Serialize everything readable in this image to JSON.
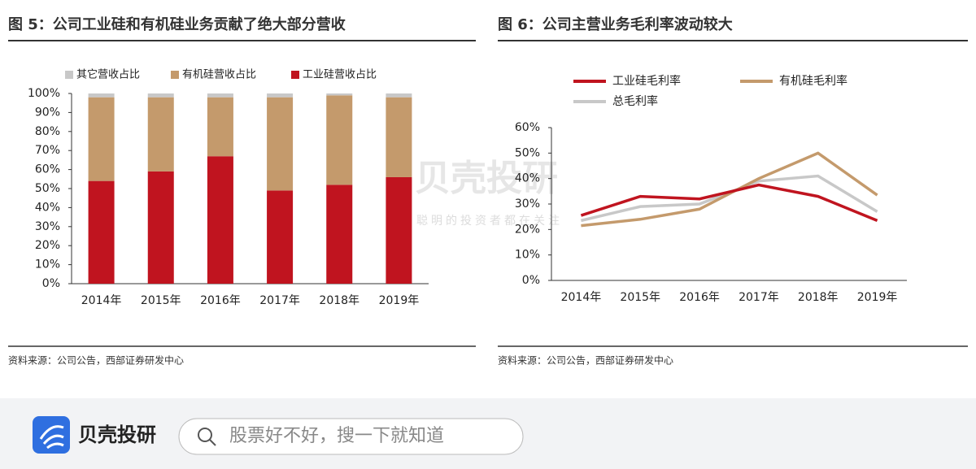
{
  "chart_data": [
    {
      "type": "stacked_bar",
      "title": "图 5：公司工业硅和有机硅业务贡献了绝大部分营收",
      "categories": [
        "2014年",
        "2015年",
        "2016年",
        "2017年",
        "2018年",
        "2019年"
      ],
      "series": [
        {
          "name": "其它营收占比",
          "color": "#c8c8c8",
          "values": [
            2,
            2,
            2,
            2,
            1,
            2
          ]
        },
        {
          "name": "有机硅营收占比",
          "color": "#c49a6c",
          "values": [
            44,
            39,
            31,
            49,
            47,
            42
          ]
        },
        {
          "name": "工业硅营收占比",
          "color": "#c0141f",
          "values": [
            54,
            59,
            67,
            49,
            52,
            56
          ]
        }
      ],
      "ylim": [
        0,
        100
      ],
      "yticks": [
        {
          "value": 0,
          "label": "0%"
        },
        {
          "value": 10,
          "label": "10%"
        },
        {
          "value": 20,
          "label": "20%"
        },
        {
          "value": 30,
          "label": "30%"
        },
        {
          "value": 40,
          "label": "40%"
        },
        {
          "value": 50,
          "label": "50%"
        },
        {
          "value": 60,
          "label": "60%"
        },
        {
          "value": 70,
          "label": "70%"
        },
        {
          "value": 80,
          "label": "80%"
        },
        {
          "value": 90,
          "label": "90%"
        },
        {
          "value": 100,
          "label": "100%"
        }
      ],
      "source": "资料来源：公司公告，西部证券研发中心"
    },
    {
      "type": "line",
      "title": "图 6：公司主营业务毛利率波动较大",
      "categories": [
        "2014年",
        "2015年",
        "2016年",
        "2017年",
        "2018年",
        "2019年"
      ],
      "series": [
        {
          "name": "工业硅毛利率",
          "color": "#c0141f",
          "values": [
            25.5,
            33,
            32,
            37.5,
            33,
            23.5
          ]
        },
        {
          "name": "有机硅毛利率",
          "color": "#c49a6c",
          "values": [
            21.5,
            24,
            28,
            40,
            50,
            33.5
          ]
        },
        {
          "name": "总毛利率",
          "color": "#c8c8c8",
          "values": [
            23.5,
            29,
            30,
            39,
            41,
            27
          ]
        }
      ],
      "ylim": [
        0,
        60
      ],
      "yticks": [
        {
          "value": 0,
          "label": "0%"
        },
        {
          "value": 10,
          "label": "10%"
        },
        {
          "value": 20,
          "label": "20%"
        },
        {
          "value": 30,
          "label": "30%"
        },
        {
          "value": 40,
          "label": "40%"
        },
        {
          "value": 50,
          "label": "50%"
        },
        {
          "value": 60,
          "label": "60%"
        }
      ],
      "source": "资料来源：公司公告，西部证券研发中心"
    }
  ],
  "watermark": {
    "brand": "贝壳投研",
    "slogan": "聪明的投资者都在关注"
  },
  "footer_bar": {
    "brand": "贝壳投研",
    "search_placeholder": "股票好不好，搜一下就知道"
  }
}
